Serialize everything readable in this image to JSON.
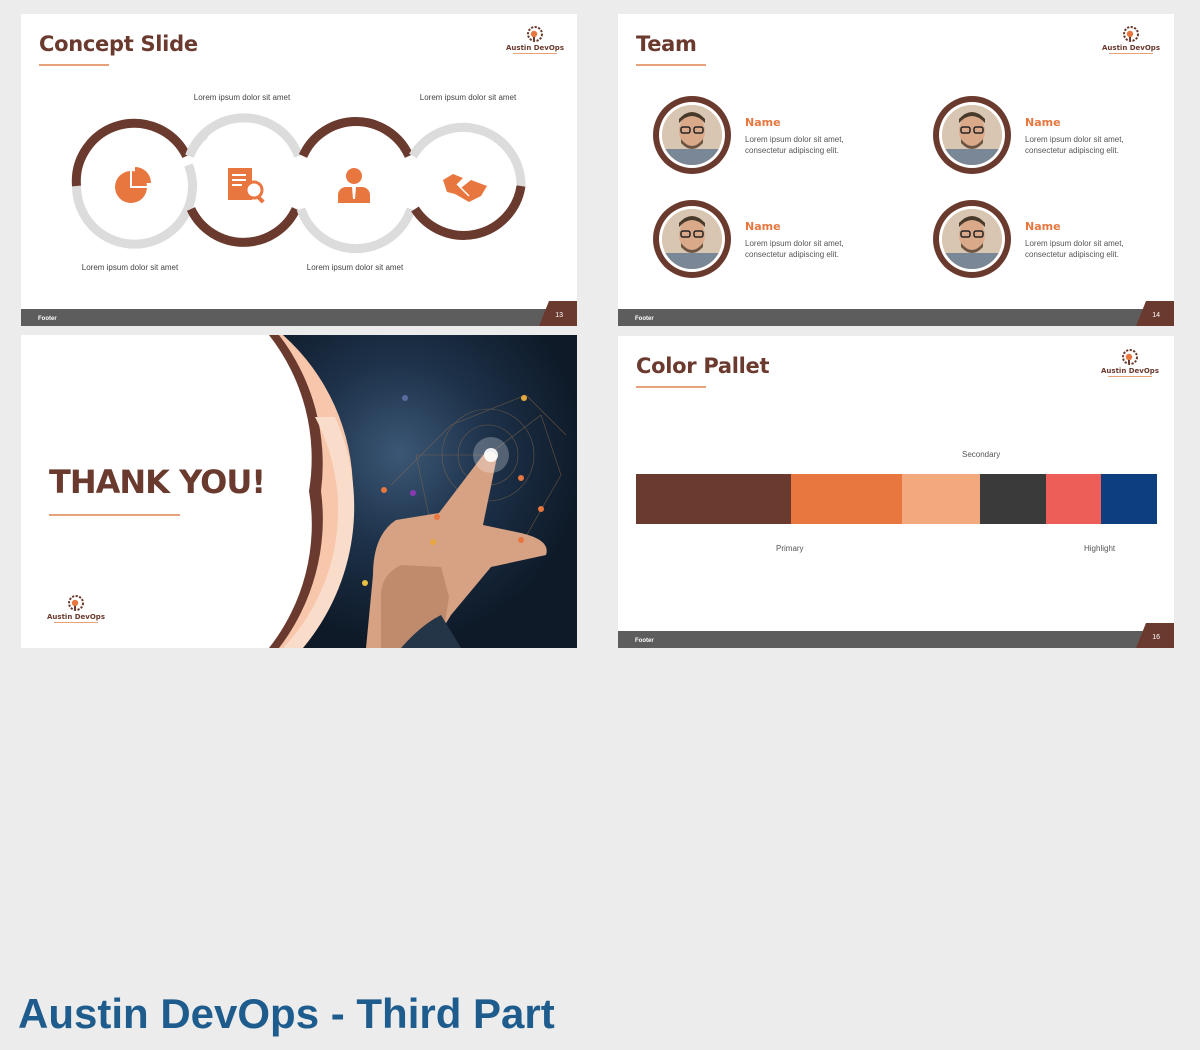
{
  "main_title": "Austin DevOps - Third Part",
  "brand": {
    "name": "Austin DevOps",
    "primary": "#6b3a2e",
    "accent": "#e8763f",
    "light_accent": "#f2a97d",
    "bar_gray": "#5d5d5d"
  },
  "footer_label": "Footer",
  "slides": {
    "concept": {
      "title": "Concept Slide",
      "page": "13",
      "captions": [
        "Lorem ipsum dolor sit amet",
        "Lorem ipsum dolor sit amet",
        "Lorem ipsum dolor sit amet",
        "Lorem ipsum dolor sit amet"
      ],
      "icons": [
        "pie-chart-icon",
        "document-search-icon",
        "businessman-icon",
        "handshake-icon"
      ]
    },
    "team": {
      "title": "Team",
      "page": "14",
      "members": [
        {
          "name": "Name",
          "desc": "Lorem ipsum dolor sit amet, consectetur adipiscing elit."
        },
        {
          "name": "Name",
          "desc": "Lorem ipsum dolor sit amet, consectetur adipiscing elit."
        },
        {
          "name": "Name",
          "desc": "Lorem ipsum dolor sit amet, consectetur adipiscing elit."
        },
        {
          "name": "Name",
          "desc": "Lorem ipsum dolor sit amet, consectetur adipiscing elit."
        }
      ]
    },
    "thanks": {
      "title": "THANK YOU!"
    },
    "palette": {
      "title": "Color Pallet",
      "page": "16",
      "labels": {
        "primary": "Primary",
        "secondary": "Secondary",
        "highlight": "Highlight"
      },
      "colors": [
        "#6b3a2e",
        "#e8763f",
        "#f2a97d",
        "#3a3a3a",
        "#ec5e57",
        "#0d3e80"
      ]
    }
  }
}
